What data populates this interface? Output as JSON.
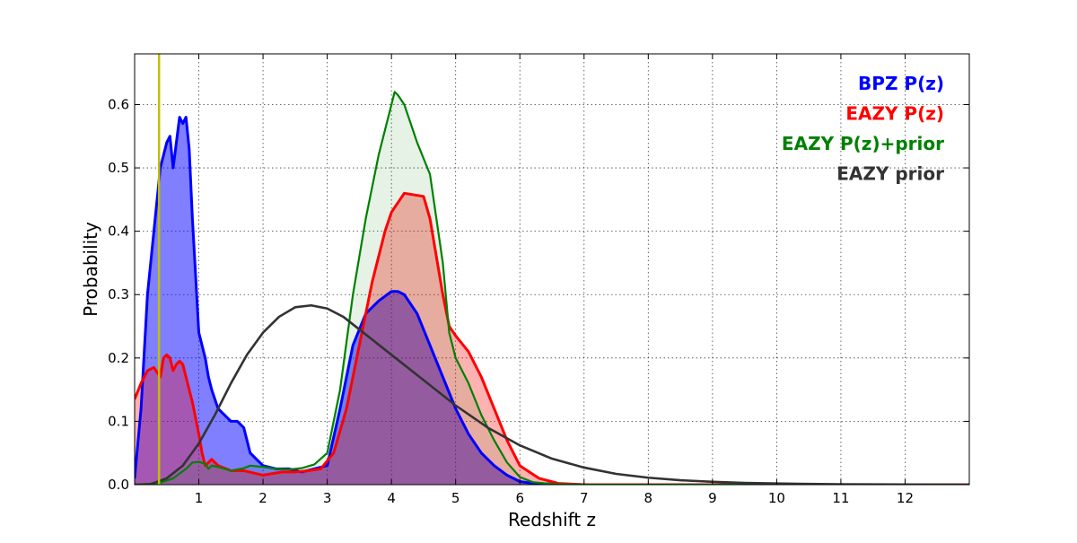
{
  "chart_data": {
    "type": "area",
    "title": "",
    "xlabel": "Redshift z",
    "ylabel": "Probability",
    "xlim": [
      0,
      13
    ],
    "ylim": [
      0,
      0.68
    ],
    "grid": true,
    "legend_position": "top-right",
    "x_ticks": [
      "1",
      "2",
      "3",
      "4",
      "5",
      "6",
      "7",
      "8",
      "9",
      "10",
      "11",
      "12"
    ],
    "y_ticks": [
      "0.0",
      "0.1",
      "0.2",
      "0.3",
      "0.4",
      "0.5",
      "0.6"
    ],
    "vertical_marker": {
      "x": 0.38,
      "color": "#bfbf00"
    },
    "series": [
      {
        "name": "BPZ P(z)",
        "color": "#0000ff",
        "fill": "#0000ff",
        "fill_opacity": 0.5,
        "x": [
          0,
          0.1,
          0.2,
          0.3,
          0.4,
          0.45,
          0.5,
          0.55,
          0.6,
          0.65,
          0.7,
          0.75,
          0.8,
          0.85,
          0.9,
          0.95,
          1.0,
          1.05,
          1.1,
          1.15,
          1.2,
          1.3,
          1.4,
          1.5,
          1.6,
          1.7,
          1.8,
          1.9,
          2.0,
          2.2,
          2.4,
          2.6,
          2.8,
          3.0,
          3.2,
          3.4,
          3.6,
          3.8,
          4.0,
          4.1,
          4.2,
          4.4,
          4.6,
          4.8,
          5.0,
          5.2,
          5.4,
          5.6,
          5.8,
          6.0,
          6.2,
          6.5,
          7,
          13
        ],
        "y": [
          0.01,
          0.12,
          0.3,
          0.4,
          0.5,
          0.52,
          0.54,
          0.55,
          0.5,
          0.54,
          0.58,
          0.57,
          0.58,
          0.53,
          0.42,
          0.33,
          0.24,
          0.22,
          0.2,
          0.17,
          0.15,
          0.12,
          0.11,
          0.1,
          0.1,
          0.09,
          0.05,
          0.04,
          0.03,
          0.025,
          0.025,
          0.02,
          0.025,
          0.03,
          0.12,
          0.22,
          0.27,
          0.29,
          0.305,
          0.305,
          0.3,
          0.27,
          0.22,
          0.17,
          0.12,
          0.08,
          0.05,
          0.03,
          0.015,
          0.005,
          0.002,
          0.001,
          0,
          0
        ]
      },
      {
        "name": "EAZY P(z)",
        "color": "#ff0000",
        "fill": "#ff0000",
        "fill_opacity": 0.3,
        "x": [
          0,
          0.1,
          0.2,
          0.3,
          0.4,
          0.45,
          0.5,
          0.55,
          0.6,
          0.65,
          0.7,
          0.75,
          0.8,
          0.9,
          1.0,
          1.05,
          1.1,
          1.15,
          1.2,
          1.3,
          1.5,
          1.7,
          2.0,
          2.3,
          2.5,
          2.7,
          2.9,
          3.1,
          3.3,
          3.5,
          3.7,
          3.9,
          4.0,
          4.2,
          4.5,
          4.6,
          4.8,
          4.9,
          5.0,
          5.2,
          5.4,
          5.6,
          5.8,
          6.0,
          6.3,
          6.6,
          7,
          13
        ],
        "y": [
          0.135,
          0.16,
          0.18,
          0.185,
          0.17,
          0.2,
          0.205,
          0.2,
          0.18,
          0.19,
          0.195,
          0.19,
          0.17,
          0.13,
          0.08,
          0.05,
          0.03,
          0.035,
          0.04,
          0.03,
          0.022,
          0.022,
          0.015,
          0.02,
          0.02,
          0.022,
          0.025,
          0.05,
          0.12,
          0.22,
          0.32,
          0.4,
          0.43,
          0.46,
          0.455,
          0.42,
          0.3,
          0.25,
          0.235,
          0.21,
          0.17,
          0.12,
          0.07,
          0.03,
          0.01,
          0.002,
          0,
          0
        ]
      },
      {
        "name": "EAZY P(z)+prior",
        "color": "#008000",
        "fill": "#008000",
        "fill_opacity": 0.1,
        "x": [
          0,
          0.2,
          0.4,
          0.6,
          0.8,
          0.9,
          1.0,
          1.1,
          1.15,
          1.2,
          1.3,
          1.5,
          1.7,
          1.8,
          2.0,
          2.2,
          2.4,
          2.6,
          2.8,
          3.0,
          3.2,
          3.4,
          3.6,
          3.8,
          4.0,
          4.05,
          4.1,
          4.2,
          4.4,
          4.6,
          4.8,
          4.9,
          5.0,
          5.2,
          5.4,
          5.6,
          5.8,
          6.0,
          6.2,
          6.5,
          7,
          13
        ],
        "y": [
          0,
          0.001,
          0.003,
          0.01,
          0.025,
          0.035,
          0.036,
          0.033,
          0.025,
          0.03,
          0.028,
          0.022,
          0.026,
          0.03,
          0.028,
          0.025,
          0.024,
          0.026,
          0.032,
          0.05,
          0.15,
          0.3,
          0.42,
          0.52,
          0.6,
          0.62,
          0.615,
          0.6,
          0.54,
          0.49,
          0.35,
          0.24,
          0.2,
          0.16,
          0.11,
          0.07,
          0.035,
          0.012,
          0.004,
          0.001,
          0,
          0
        ]
      },
      {
        "name": "EAZY prior",
        "color": "#333333",
        "fill": "none",
        "fill_opacity": 0,
        "x": [
          0,
          0.25,
          0.5,
          0.75,
          1.0,
          1.25,
          1.5,
          1.75,
          2.0,
          2.25,
          2.5,
          2.75,
          3.0,
          3.25,
          3.5,
          3.75,
          4.0,
          4.5,
          5.0,
          5.5,
          6.0,
          6.5,
          7.0,
          7.5,
          8.0,
          8.5,
          9.0,
          9.5,
          10.0,
          10.5,
          11.0,
          11.5,
          12.0,
          13.0
        ],
        "y": [
          0,
          0.001,
          0.01,
          0.03,
          0.065,
          0.11,
          0.16,
          0.205,
          0.24,
          0.265,
          0.28,
          0.283,
          0.278,
          0.265,
          0.245,
          0.225,
          0.205,
          0.165,
          0.125,
          0.09,
          0.062,
          0.041,
          0.027,
          0.017,
          0.011,
          0.007,
          0.0045,
          0.0028,
          0.0018,
          0.0011,
          0.0007,
          0.0004,
          0.0002,
          0
        ]
      }
    ]
  }
}
